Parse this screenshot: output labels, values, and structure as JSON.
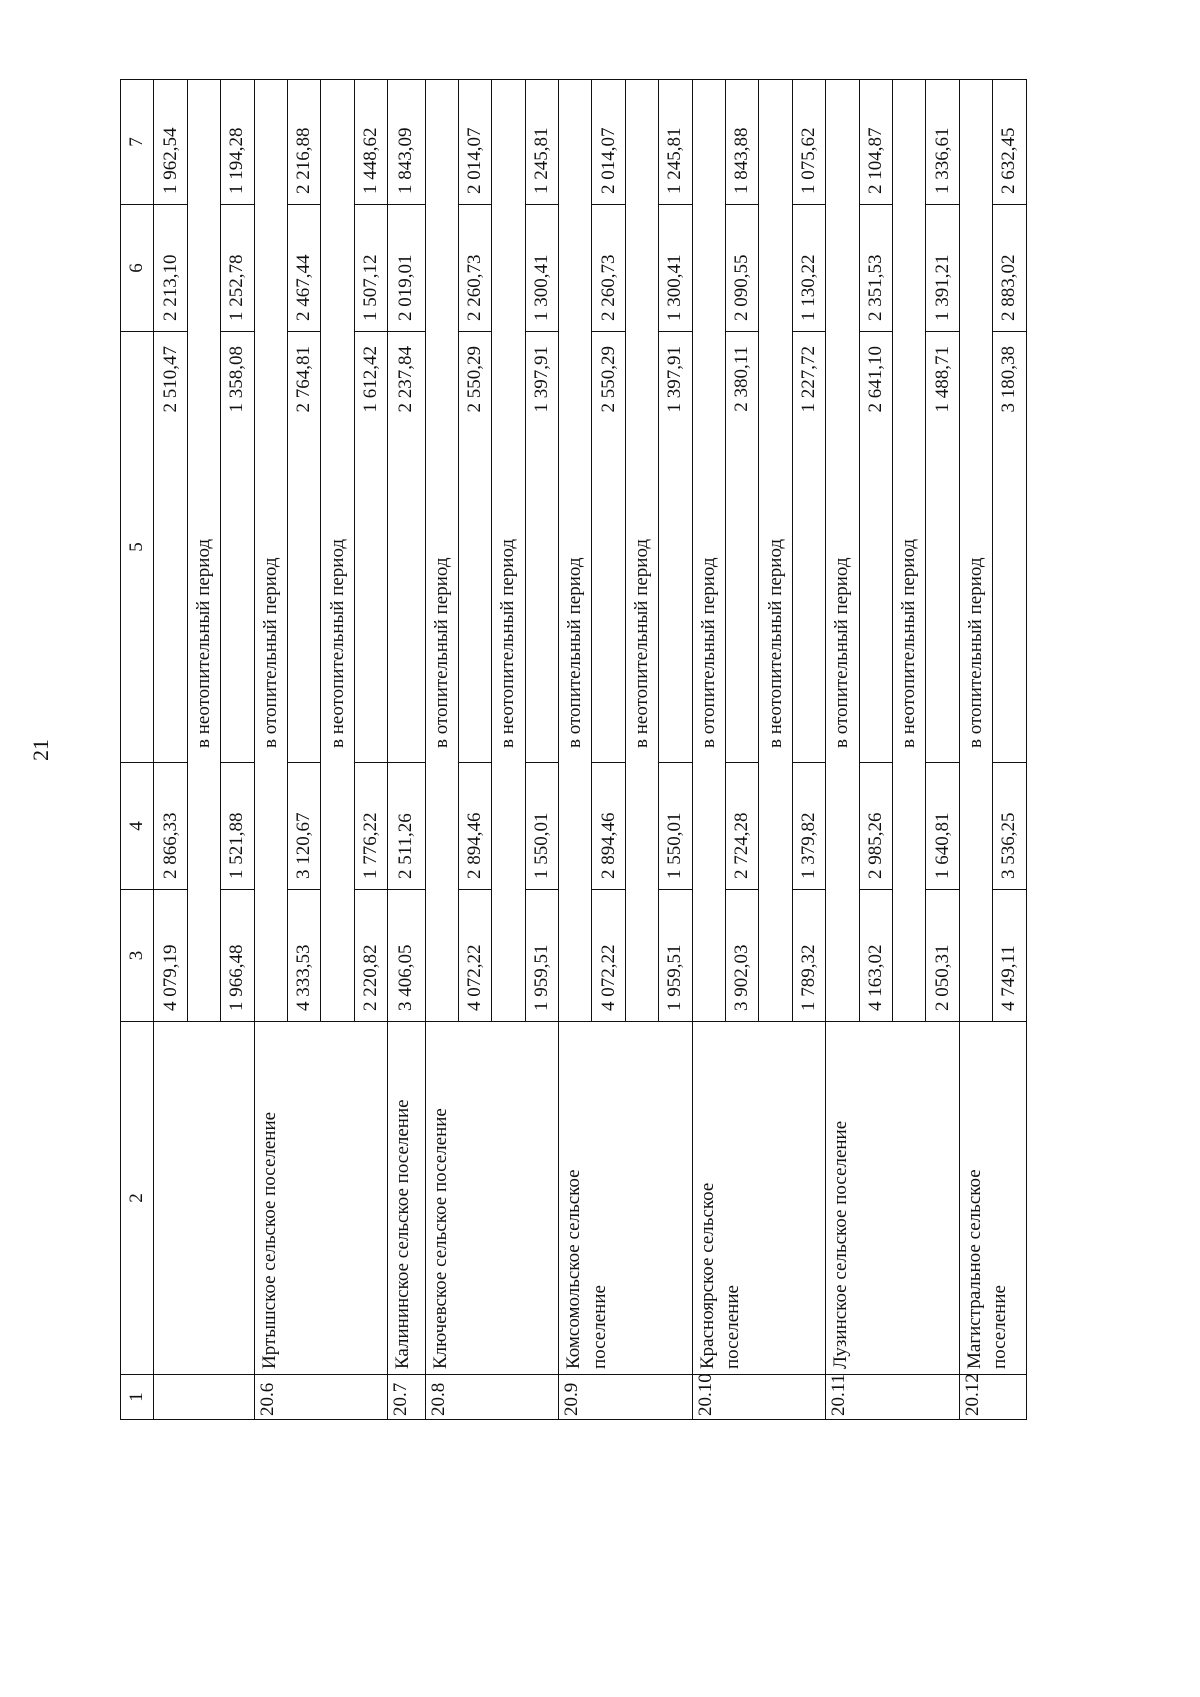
{
  "page_number": "21",
  "headers": [
    "1",
    "2",
    "3",
    "4",
    "5",
    "6",
    "7"
  ],
  "groups": [
    {
      "num": "",
      "name": "",
      "rows": [
        {
          "values": [
            "4 079,19",
            "2 866,33",
            "2 510,47",
            "2 213,10",
            "1 962,54"
          ]
        },
        {
          "label": "в неотопительный период"
        },
        {
          "values": [
            "1 966,48",
            "1 521,88",
            "1 358,08",
            "1 252,78",
            "1 194,28"
          ]
        }
      ]
    },
    {
      "num": "20.6",
      "name": "Иртышское сельское поселение",
      "rows": [
        {
          "label": "в отопительный период"
        },
        {
          "values": [
            "4 333,53",
            "3 120,67",
            "2 764,81",
            "2 467,44",
            "2 216,88"
          ]
        },
        {
          "label": "в неотопительный период"
        },
        {
          "values": [
            "2 220,82",
            "1 776,22",
            "1 612,42",
            "1 507,12",
            "1 448,62"
          ]
        }
      ]
    },
    {
      "num": "20.7",
      "name": "Калининское сельское поселение",
      "rows": [
        {
          "values": [
            "3 406,05",
            "2 511,26",
            "2 237,84",
            "2 019,01",
            "1 843,09"
          ]
        }
      ]
    },
    {
      "num": "20.8",
      "name": "Ключевское сельское поселение",
      "rows": [
        {
          "label": "в отопительный период"
        },
        {
          "values": [
            "4 072,22",
            "2 894,46",
            "2 550,29",
            "2 260,73",
            "2 014,07"
          ]
        },
        {
          "label": "в неотопительный период"
        },
        {
          "values": [
            "1 959,51",
            "1 550,01",
            "1 397,91",
            "1 300,41",
            "1 245,81"
          ]
        }
      ]
    },
    {
      "num": "20.9",
      "name": "Комсомольское сельское\nпоселение",
      "rows": [
        {
          "label": "в отопительный период"
        },
        {
          "values": [
            "4 072,22",
            "2 894,46",
            "2 550,29",
            "2 260,73",
            "2 014,07"
          ]
        },
        {
          "label": "в неотопительный период"
        },
        {
          "values": [
            "1 959,51",
            "1 550,01",
            "1 397,91",
            "1 300,41",
            "1 245,81"
          ]
        }
      ]
    },
    {
      "num": "20.10",
      "name": "Красноярское сельское\nпоселение",
      "rows": [
        {
          "label": "в отопительный период"
        },
        {
          "values": [
            "3 902,03",
            "2 724,28",
            "2 380,11",
            "2 090,55",
            "1 843,88"
          ]
        },
        {
          "label": "в неотопительный период"
        },
        {
          "values": [
            "1 789,32",
            "1 379,82",
            "1 227,72",
            "1 130,22",
            "1 075,62"
          ]
        }
      ]
    },
    {
      "num": "20.11",
      "name": "Лузинское сельское поселение",
      "rows": [
        {
          "label": "в отопительный период"
        },
        {
          "values": [
            "4 163,02",
            "2 985,26",
            "2 641,10",
            "2 351,53",
            "2 104,87"
          ]
        },
        {
          "label": "в неотопительный период"
        },
        {
          "values": [
            "2 050,31",
            "1 640,81",
            "1 488,71",
            "1 391,21",
            "1 336,61"
          ]
        }
      ]
    },
    {
      "num": "20.12",
      "name": "Магистральное сельское\nпоселение",
      "rows": [
        {
          "label": "в отопительный период"
        },
        {
          "values": [
            "4 749,11",
            "3 536,25",
            "3 180,38",
            "2 883,02",
            "2 632,45"
          ]
        }
      ]
    }
  ]
}
